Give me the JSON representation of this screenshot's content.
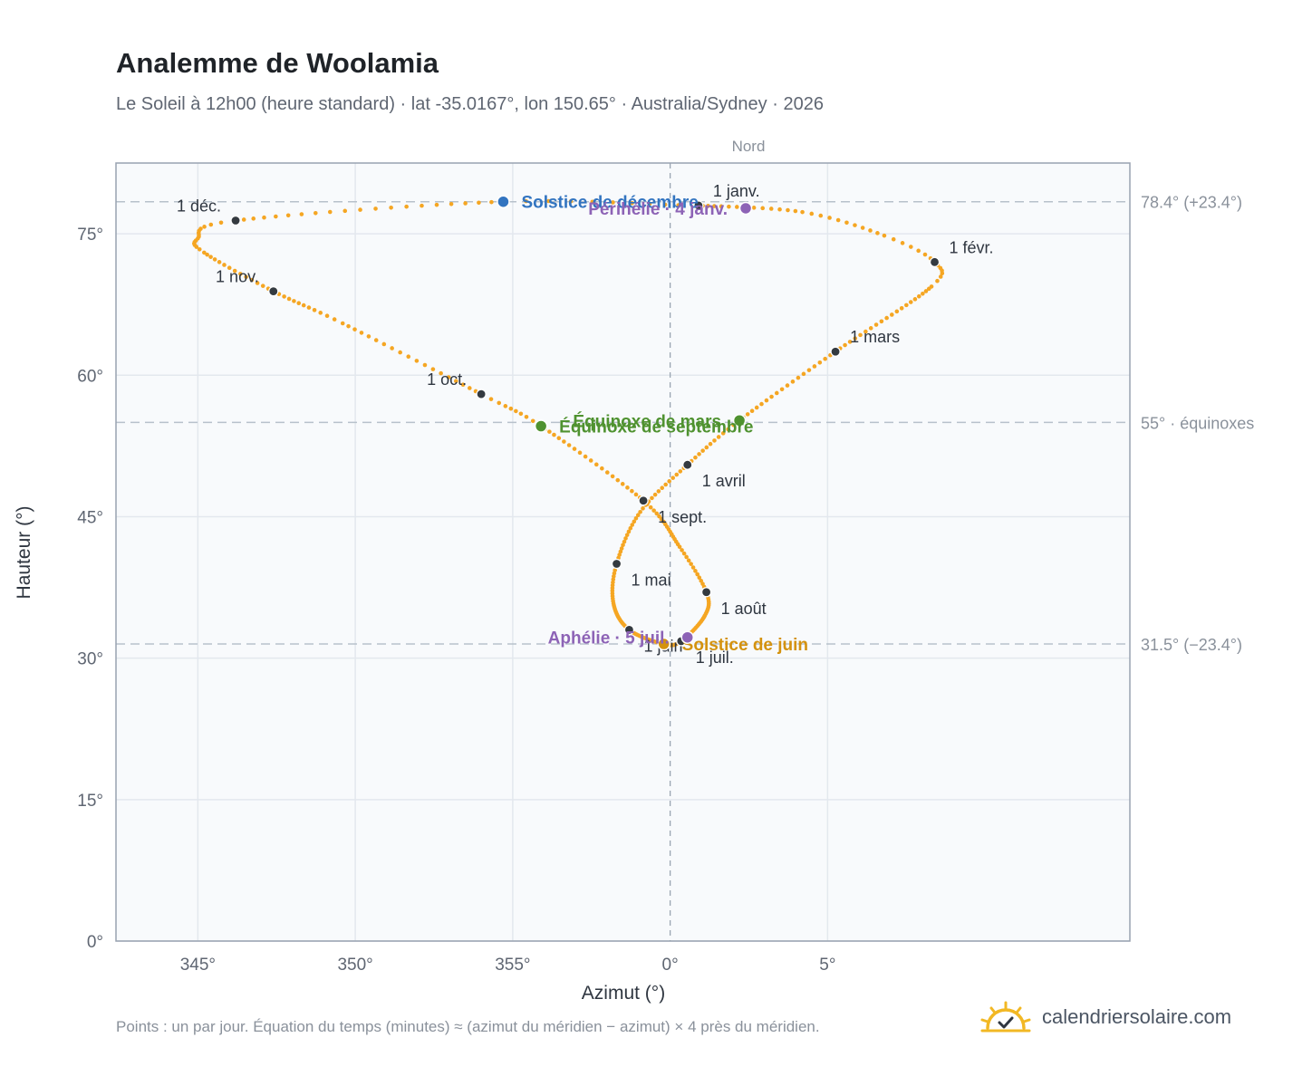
{
  "title": "Analemme de Woolamia",
  "subtitle": "Le Soleil à 12h00 (heure standard) · lat -35.0167°, lon 150.65° · Australia/Sydney · 2026",
  "footnote": "Points : un par jour. Équation du temps (minutes) ≈ (azimut du méridien − azimut) × 4 près du méridien.",
  "brand": {
    "name": "calendriersolaire.com",
    "icon": "sun-check-icon"
  },
  "colors": {
    "curve": "#f5a623",
    "month_marker": "#343a40",
    "solstice_dec": "#3274c0",
    "solstice_jun": "#d4920e",
    "equinox": "#4f9230",
    "perihelion": "#8d63b6",
    "reference_line": "#b7c1cb"
  },
  "chart_data": {
    "type": "scatter",
    "xlabel": "Azimut (°)",
    "ylabel": "Hauteur (°)",
    "xlim": [
      342.4,
      14.6
    ],
    "ylim": [
      0,
      82.5
    ],
    "x_ticks": [
      "345°",
      "350°",
      "355°",
      "0°",
      "5°"
    ],
    "y_ticks": [
      "0°",
      "15°",
      "30°",
      "45°",
      "60°",
      "75°"
    ],
    "x_tick_values": [
      345,
      350,
      355,
      0,
      5
    ],
    "y_tick_values": [
      0,
      15,
      30,
      45,
      60,
      75
    ],
    "grid": true,
    "meridian": {
      "azimuth": 0,
      "label": "Nord"
    },
    "reference_lines": [
      {
        "altitude": 78.4,
        "label": "78.4° (+23.4°)"
      },
      {
        "altitude": 55.0,
        "label": "55° · équinoxes"
      },
      {
        "altitude": 31.5,
        "label": "31.5° (−23.4°)"
      }
    ],
    "path_anchors": [
      {
        "date": "2026-01-01",
        "azimuth": 0.9,
        "altitude": 78.0
      },
      {
        "date": "2026-01-15",
        "azimuth": 4.2,
        "altitude": 77.3
      },
      {
        "date": "2026-01-25",
        "azimuth": 6.8,
        "altitude": 74.8
      },
      {
        "date": "2026-02-01",
        "azimuth": 8.4,
        "altitude": 72.0
      },
      {
        "date": "2026-02-08",
        "azimuth": 8.3,
        "altitude": 69.4
      },
      {
        "date": "2026-03-01",
        "azimuth": 5.25,
        "altitude": 62.5
      },
      {
        "date": "2026-03-20",
        "azimuth": 2.2,
        "altitude": 55.2
      },
      {
        "date": "2026-04-01",
        "azimuth": 0.55,
        "altitude": 50.5
      },
      {
        "date": "2026-04-15",
        "azimuth": -0.95,
        "altitude": 45.5
      },
      {
        "date": "2026-05-01",
        "azimuth": -1.7,
        "altitude": 40.0
      },
      {
        "date": "2026-05-15",
        "azimuth": -1.8,
        "altitude": 35.8
      },
      {
        "date": "2026-06-01",
        "azimuth": -1.3,
        "altitude": 33.0
      },
      {
        "date": "2026-06-21",
        "azimuth": -0.2,
        "altitude": 31.5
      },
      {
        "date": "2026-07-01",
        "azimuth": 0.35,
        "altitude": 31.8
      },
      {
        "date": "2026-07-20",
        "azimuth": 1.1,
        "altitude": 34.5
      },
      {
        "date": "2026-08-01",
        "azimuth": 1.15,
        "altitude": 37.0
      },
      {
        "date": "2026-08-15",
        "azimuth": 0.3,
        "altitude": 41.8
      },
      {
        "date": "2026-09-01",
        "azimuth": -0.85,
        "altitude": 46.7
      },
      {
        "date": "2026-09-22",
        "azimuth": -4.1,
        "altitude": 54.6
      },
      {
        "date": "2026-10-01",
        "azimuth": -6.0,
        "altitude": 58.0
      },
      {
        "date": "2026-10-20",
        "azimuth": -10.4,
        "altitude": 65.5
      },
      {
        "date": "2026-11-01",
        "azimuth": -12.6,
        "altitude": 68.9
      },
      {
        "date": "2026-11-15",
        "azimuth": -14.8,
        "altitude": 73.0
      },
      {
        "date": "2026-11-22",
        "azimuth": -15.0,
        "altitude": 74.5
      },
      {
        "date": "2026-12-01",
        "azimuth": -13.8,
        "altitude": 76.4
      },
      {
        "date": "2026-12-21",
        "azimuth": -5.3,
        "altitude": 78.4
      },
      {
        "date": "2026-12-31",
        "azimuth": 0.6,
        "altitude": 78.0
      }
    ],
    "month_markers": [
      {
        "label": "1 janv.",
        "azimuth": 0.9,
        "altitude": 78.0,
        "label_pos": "above-right"
      },
      {
        "label": "1 févr.",
        "azimuth": 8.4,
        "altitude": 72.0,
        "label_pos": "above-right"
      },
      {
        "label": "1 mars",
        "azimuth": 5.25,
        "altitude": 62.5,
        "label_pos": "above-right"
      },
      {
        "label": "1 avril",
        "azimuth": 0.55,
        "altitude": 50.5,
        "label_pos": "below-right"
      },
      {
        "label": "1 mai",
        "azimuth": -1.7,
        "altitude": 40.0,
        "label_pos": "below-right"
      },
      {
        "label": "1 juin",
        "azimuth": -1.3,
        "altitude": 33.0,
        "label_pos": "below-right"
      },
      {
        "label": "1 juil.",
        "azimuth": 0.35,
        "altitude": 31.8,
        "label_pos": "below-right"
      },
      {
        "label": "1 août",
        "azimuth": 1.15,
        "altitude": 37.0,
        "label_pos": "below-right"
      },
      {
        "label": "1 sept.",
        "azimuth": -0.85,
        "altitude": 46.7,
        "label_pos": "below-right"
      },
      {
        "label": "1 oct.",
        "azimuth": -6.0,
        "altitude": 58.0,
        "label_pos": "above-left"
      },
      {
        "label": "1 nov.",
        "azimuth": -12.6,
        "altitude": 68.9,
        "label_pos": "above-left"
      },
      {
        "label": "1 déc.",
        "azimuth": -13.8,
        "altitude": 76.4,
        "label_pos": "above-left"
      }
    ],
    "events": [
      {
        "label": "Solstice de décembre",
        "azimuth": -5.3,
        "altitude": 78.4,
        "color": "#3274c0",
        "label_pos": "right"
      },
      {
        "label": "Périhélie · 4 janv.",
        "azimuth": 2.4,
        "altitude": 77.7,
        "color": "#8d63b6",
        "label_pos": "left"
      },
      {
        "label": "Équinoxe de mars",
        "azimuth": 2.2,
        "altitude": 55.2,
        "color": "#4f9230",
        "label_pos": "left"
      },
      {
        "label": "Équinoxe de septembre",
        "azimuth": -4.1,
        "altitude": 54.6,
        "color": "#4f9230",
        "label_pos": "right"
      },
      {
        "label": "Solstice de juin",
        "azimuth": -0.2,
        "altitude": 31.5,
        "color": "#d4920e",
        "label_pos": "right"
      },
      {
        "label": "Aphélie · 5 juil.",
        "azimuth": 0.55,
        "altitude": 32.2,
        "color": "#8d63b6",
        "label_pos": "left"
      }
    ]
  }
}
